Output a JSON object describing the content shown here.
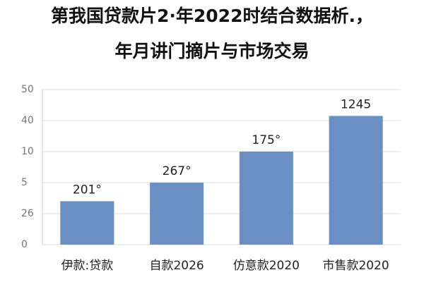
{
  "chart_data": {
    "type": "bar",
    "title": "第我国贷款片2·年2022时结合数据析.，",
    "subtitle": "年月讲门摘片与市场交易",
    "categories": [
      "伊款:贷款",
      "自款2026",
      "仿意款2020",
      "市售款2020"
    ],
    "values": [
      14,
      20,
      30,
      41.5
    ],
    "annotations": [
      "201°",
      "267°",
      "175°",
      "1245"
    ],
    "color": "#6b8fc2",
    "ylim": [
      0,
      50
    ],
    "yticks": [
      0,
      {
        "value": 10,
        "label": "26"
      },
      {
        "value": 20,
        "label": "5"
      },
      {
        "value": 30,
        "label": "10"
      },
      40,
      50
    ],
    "grid": true
  }
}
